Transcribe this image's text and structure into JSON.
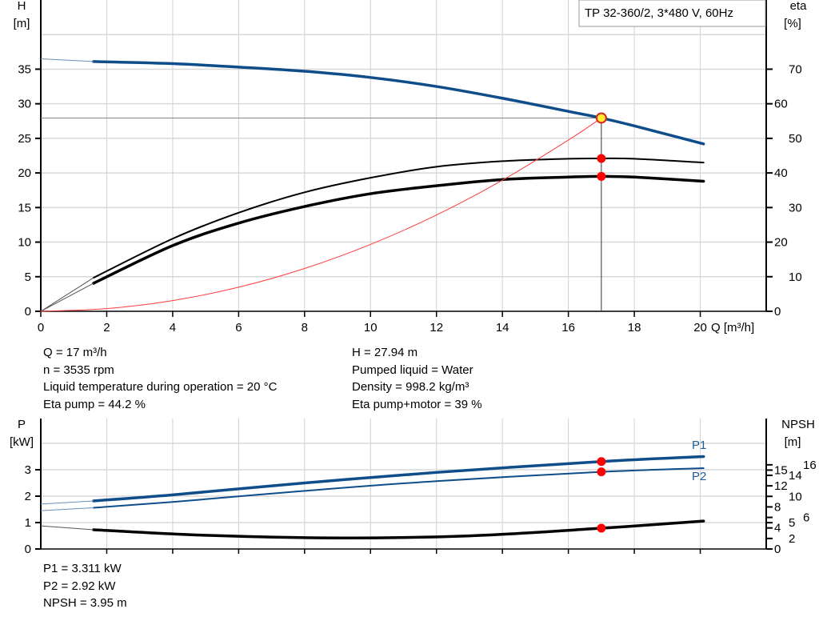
{
  "chart_data": [
    {
      "type": "line",
      "title": "TP 32-360/2, 3*480 V, 60Hz",
      "xlabel": "Q [m³/h]",
      "ylabel": "H [m]",
      "ylabel_head": "H",
      "ylabel_unit": "[m]",
      "y2label_head": "eta",
      "y2label_unit": "[%]",
      "xlim": [
        0,
        22
      ],
      "ylim": [
        0,
        45
      ],
      "y2lim": [
        0,
        90
      ],
      "x_ticks": [
        0,
        2,
        4,
        6,
        8,
        10,
        12,
        14,
        16,
        18,
        20
      ],
      "y_ticks": [
        0,
        5,
        10,
        15,
        20,
        25,
        30,
        35
      ],
      "y2_ticks": [
        0,
        10,
        20,
        30,
        40,
        50,
        60,
        70
      ],
      "grid": true,
      "series": [
        {
          "key": "H",
          "axis": "left",
          "color": "#0f4d8a",
          "x": [
            1.6,
            4,
            6,
            8,
            10,
            12,
            14,
            16,
            17,
            18,
            20.1
          ],
          "y": [
            36.1,
            35.8,
            35.3,
            34.7,
            33.8,
            32.5,
            30.8,
            28.9,
            27.94,
            26.8,
            24.2
          ],
          "extrapolated": {
            "x": [
              0,
              1.6
            ],
            "y": [
              36.5,
              36.1
            ]
          }
        },
        {
          "key": "eta_pump",
          "axis": "right",
          "color": "#000000",
          "x": [
            1.6,
            4,
            6,
            8,
            10,
            12,
            14,
            16,
            17,
            18,
            20.1
          ],
          "y": [
            9.7,
            21,
            28.5,
            34.4,
            38.6,
            41.8,
            43.4,
            44.1,
            44.2,
            44.1,
            43
          ],
          "extrapolated": {
            "x": [
              0,
              1.6
            ],
            "y": [
              0,
              9.7
            ]
          }
        },
        {
          "key": "eta_pump_motor",
          "axis": "right",
          "color": "#000000",
          "x": [
            1.6,
            4,
            6,
            8,
            10,
            12,
            14,
            16,
            17,
            18,
            20.1
          ],
          "y": [
            8.1,
            19,
            25.5,
            30.3,
            34,
            36.3,
            38.1,
            38.8,
            39,
            38.8,
            37.6
          ],
          "extrapolated": {
            "x": [
              0,
              1.6
            ],
            "y": [
              0,
              8.1
            ]
          }
        },
        {
          "key": "system",
          "axis": "left",
          "color": "#ff3b3b",
          "x": [
            0,
            2,
            4,
            6,
            8,
            10,
            12,
            14,
            16,
            17
          ],
          "y": [
            0,
            0.39,
            1.55,
            3.48,
            6.19,
            9.67,
            13.92,
            18.95,
            24.75,
            27.94
          ]
        }
      ],
      "operating_point": {
        "Q": 17,
        "H": 27.94,
        "eta_pump": 44.2,
        "eta_pump_motor": 39
      }
    },
    {
      "type": "line",
      "ylabel_head": "P",
      "ylabel_unit": "[kW]",
      "y2label_head": "NPSH",
      "y2label_unit": "[m]",
      "xlim": [
        0,
        22
      ],
      "ylim": [
        0,
        4.94
      ],
      "y2lim": [
        0,
        24.8
      ],
      "y_ticks": [
        0,
        1,
        2,
        3
      ],
      "y2_ticks": [
        0,
        2,
        4,
        5,
        6,
        8,
        10,
        12,
        14,
        15,
        16
      ],
      "grid": true,
      "series": [
        {
          "key": "P1",
          "name": "P1",
          "axis": "left",
          "color": "#0f4d8a",
          "x": [
            1.6,
            4,
            8,
            12,
            17,
            20.1
          ],
          "y": [
            1.82,
            2.05,
            2.5,
            2.9,
            3.311,
            3.5
          ],
          "extrapolated": {
            "x": [
              0,
              1.6
            ],
            "y": [
              1.7,
              1.82
            ]
          }
        },
        {
          "key": "P2",
          "name": "P2",
          "axis": "left",
          "color": "#0f4d8a",
          "x": [
            1.6,
            4,
            8,
            12,
            17,
            20.1
          ],
          "y": [
            1.56,
            1.78,
            2.2,
            2.57,
            2.92,
            3.06
          ],
          "extrapolated": {
            "x": [
              0,
              1.6
            ],
            "y": [
              1.45,
              1.56
            ]
          }
        },
        {
          "key": "NPSH",
          "axis": "right",
          "color": "#000000",
          "x": [
            1.6,
            5,
            9,
            13,
            17,
            20.1
          ],
          "y": [
            3.66,
            2.6,
            2.1,
            2.5,
            3.95,
            5.3
          ],
          "extrapolated": {
            "x": [
              0,
              1.6
            ],
            "y": [
              4.4,
              3.66
            ]
          }
        }
      ],
      "operating_point": {
        "Q": 17,
        "P1": 3.311,
        "P2": 2.92,
        "NPSH": 3.95
      }
    }
  ],
  "info_left": [
    "Q = 17 m³/h",
    "n = 3535 rpm",
    "Liquid temperature during operation = 20 °C",
    "Eta pump = 44.2 %"
  ],
  "info_right": [
    "H = 27.94 m",
    "Pumped liquid = Water",
    "Density = 998.2 kg/m³",
    "Eta pump+motor = 39 %"
  ],
  "info_bottom": [
    "P1 = 3.311 kW",
    "P2 = 2.92 kW",
    "NPSH = 3.95 m"
  ]
}
